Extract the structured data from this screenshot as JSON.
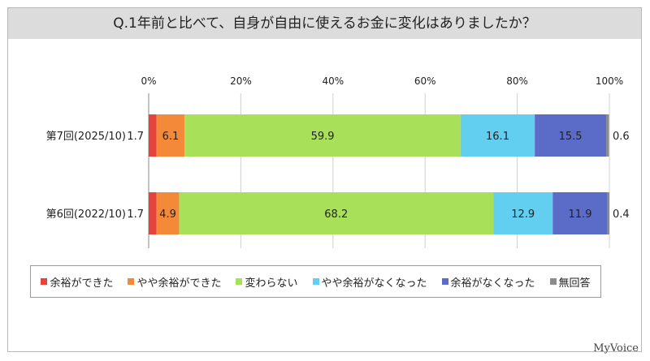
{
  "title": "Q.1年前と比べて、自身が自由に使えるお金に変化はありましたか？",
  "logo": "MyVoice",
  "colors": {
    "title_bg": "#dcdcdc",
    "series": [
      "#e8433a",
      "#f5893a",
      "#a8e05a",
      "#62cef0",
      "#5a6cc8",
      "#8c8c8c"
    ]
  },
  "chart_data": {
    "type": "bar",
    "orientation": "horizontal",
    "stacked": true,
    "categories": [
      "第7回(2025/10)",
      "第6回(2022/10)"
    ],
    "xlim": [
      0,
      100
    ],
    "xticks": [
      "0%",
      "20%",
      "40%",
      "60%",
      "80%",
      "100%"
    ],
    "grid": true,
    "legend_position": "bottom",
    "series": [
      {
        "name": "余裕ができた",
        "values": [
          1.7,
          1.7
        ]
      },
      {
        "name": "やや余裕ができた",
        "values": [
          6.1,
          4.9
        ]
      },
      {
        "name": "変わらない",
        "values": [
          59.9,
          68.2
        ]
      },
      {
        "name": "やや余裕がなくなった",
        "values": [
          16.1,
          12.9
        ]
      },
      {
        "name": "余裕がなくなった",
        "values": [
          15.5,
          11.9
        ]
      },
      {
        "name": "無回答",
        "values": [
          0.6,
          0.4
        ]
      }
    ]
  }
}
